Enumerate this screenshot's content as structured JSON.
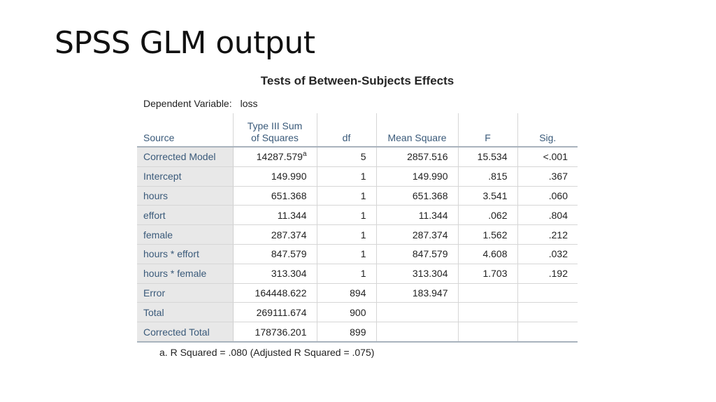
{
  "slide": {
    "title": "SPSS GLM output"
  },
  "table": {
    "title": "Tests of Between-Subjects Effects",
    "dependent_label": "Dependent Variable:",
    "dependent_value": "loss",
    "headers": {
      "source": "Source",
      "ss_line1": "Type III Sum",
      "ss_line2": "of Squares",
      "df": "df",
      "ms": "Mean Square",
      "f": "F",
      "sig": "Sig."
    },
    "rows": [
      {
        "source": "Corrected Model",
        "ss": "14287.579",
        "ss_note": "a",
        "df": "5",
        "ms": "2857.516",
        "f": "15.534",
        "sig": "<.001"
      },
      {
        "source": "Intercept",
        "ss": "149.990",
        "df": "1",
        "ms": "149.990",
        "f": ".815",
        "sig": ".367"
      },
      {
        "source": "hours",
        "ss": "651.368",
        "df": "1",
        "ms": "651.368",
        "f": "3.541",
        "sig": ".060"
      },
      {
        "source": "effort",
        "ss": "11.344",
        "df": "1",
        "ms": "11.344",
        "f": ".062",
        "sig": ".804"
      },
      {
        "source": "female",
        "ss": "287.374",
        "df": "1",
        "ms": "287.374",
        "f": "1.562",
        "sig": ".212"
      },
      {
        "source": "hours * effort",
        "ss": "847.579",
        "df": "1",
        "ms": "847.579",
        "f": "4.608",
        "sig": ".032"
      },
      {
        "source": "hours * female",
        "ss": "313.304",
        "df": "1",
        "ms": "313.304",
        "f": "1.703",
        "sig": ".192"
      },
      {
        "source": "Error",
        "ss": "164448.622",
        "df": "894",
        "ms": "183.947",
        "f": "",
        "sig": ""
      },
      {
        "source": "Total",
        "ss": "269111.674",
        "df": "900",
        "ms": "",
        "f": "",
        "sig": ""
      },
      {
        "source": "Corrected Total",
        "ss": "178736.201",
        "df": "899",
        "ms": "",
        "f": "",
        "sig": ""
      }
    ],
    "footnote": "a. R Squared = .080 (Adjusted R Squared = .075)"
  }
}
